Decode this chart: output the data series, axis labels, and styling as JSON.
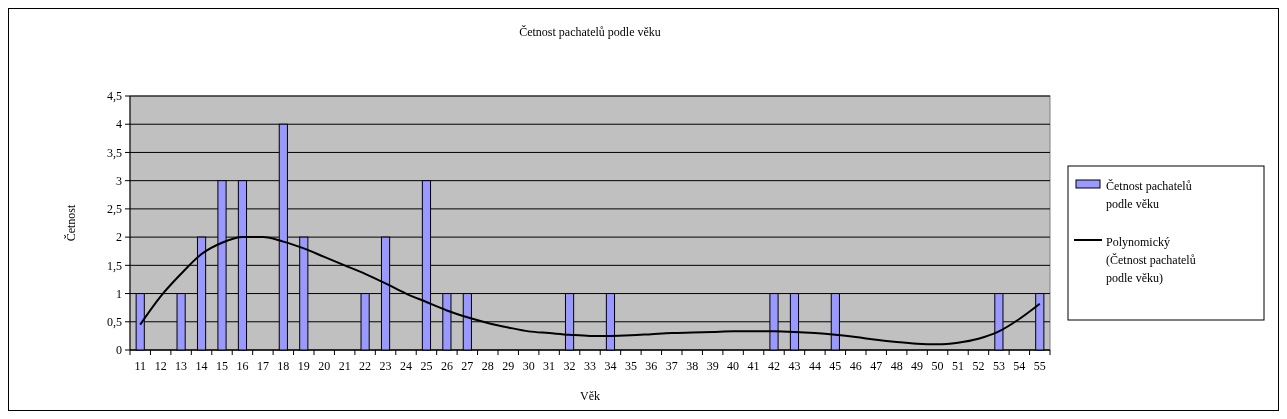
{
  "chart_data": {
    "type": "bar",
    "title": "Četnost pachatelů podle věku",
    "xlabel": "Věk",
    "ylabel": "Četnost",
    "categories": [
      "11",
      "12",
      "13",
      "14",
      "15",
      "16",
      "17",
      "18",
      "19",
      "20",
      "21",
      "22",
      "23",
      "24",
      "25",
      "26",
      "27",
      "28",
      "29",
      "30",
      "31",
      "32",
      "33",
      "34",
      "35",
      "36",
      "37",
      "38",
      "39",
      "40",
      "41",
      "42",
      "43",
      "44",
      "45",
      "46",
      "47",
      "48",
      "49",
      "50",
      "51",
      "52",
      "53",
      "54",
      "55"
    ],
    "series": [
      {
        "name": "Četnost pachatelů podle věku",
        "color": "#9999ff",
        "values": [
          1,
          0,
          1,
          2,
          3,
          3,
          0,
          4,
          2,
          0,
          0,
          1,
          2,
          0,
          3,
          1,
          1,
          0,
          0,
          0,
          0,
          1,
          0,
          1,
          0,
          0,
          0,
          0,
          0,
          0,
          0,
          1,
          1,
          0,
          1,
          0,
          0,
          0,
          0,
          0,
          0,
          0,
          1,
          0,
          1
        ]
      },
      {
        "name": "Polynomický (Četnost pachatelů podle věku)",
        "type": "line",
        "color": "#000000",
        "values": [
          0.45,
          0.95,
          1.35,
          1.7,
          1.9,
          2.0,
          2.0,
          1.92,
          1.8,
          1.65,
          1.5,
          1.35,
          1.18,
          1.0,
          0.85,
          0.7,
          0.58,
          0.48,
          0.4,
          0.33,
          0.3,
          0.27,
          0.25,
          0.25,
          0.26,
          0.28,
          0.3,
          0.31,
          0.32,
          0.33,
          0.33,
          0.33,
          0.32,
          0.3,
          0.27,
          0.23,
          0.18,
          0.14,
          0.11,
          0.1,
          0.13,
          0.2,
          0.33,
          0.55,
          0.82
        ]
      }
    ],
    "ylim": [
      0,
      4.5
    ],
    "yticks": [
      0,
      {
        "value": 0.5,
        "label": "0,5"
      },
      1,
      {
        "value": 1.5,
        "label": "1,5"
      },
      2,
      {
        "value": 2.5,
        "label": "2,5"
      },
      3,
      {
        "value": 3.5,
        "label": "3,5"
      },
      4,
      {
        "value": 4.5,
        "label": "4,5"
      }
    ],
    "grid": "y",
    "legend": "right",
    "marker": "none",
    "line_style": "solid"
  }
}
